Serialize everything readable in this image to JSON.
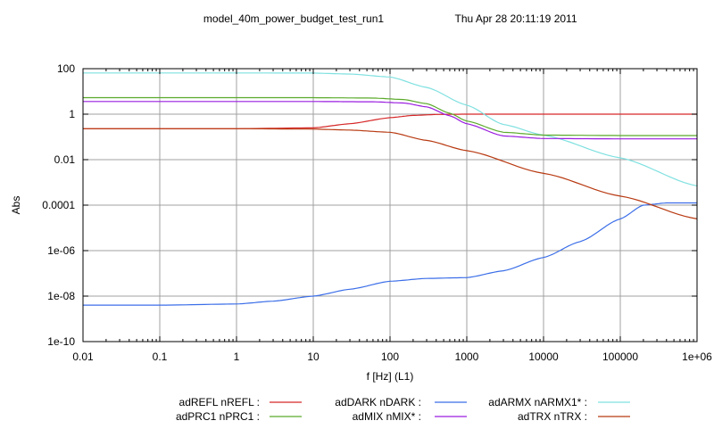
{
  "header": {
    "run_name": "model_40m_power_budget_test_run1",
    "timestamp": "Thu Apr 28 20:11:19 2011"
  },
  "chart_data": {
    "type": "line",
    "title": "model_40m_power_budget_test_run1",
    "subtitle": "Thu Apr 28 20:11:19 2011",
    "xlabel": "f [Hz] (L1)",
    "ylabel": "Abs",
    "xscale": "log",
    "yscale": "log",
    "xlim": [
      0.01,
      1000000
    ],
    "ylim": [
      1e-10,
      100
    ],
    "grid": true,
    "legend_position": "bottom",
    "x_ticks": [
      {
        "value": 0.01,
        "label": "0.01"
      },
      {
        "value": 0.1,
        "label": "0.1"
      },
      {
        "value": 1,
        "label": "1"
      },
      {
        "value": 10,
        "label": "10"
      },
      {
        "value": 100,
        "label": "100"
      },
      {
        "value": 1000,
        "label": "1000"
      },
      {
        "value": 10000,
        "label": "10000"
      },
      {
        "value": 100000,
        "label": "100000"
      },
      {
        "value": 1000000,
        "label": "1e+06"
      }
    ],
    "y_ticks": [
      {
        "value": 100,
        "label": "100"
      },
      {
        "value": 1,
        "label": "1"
      },
      {
        "value": 0.01,
        "label": "0.01"
      },
      {
        "value": 0.0001,
        "label": "0.0001"
      },
      {
        "value": 1e-06,
        "label": "1e-06"
      },
      {
        "value": 1e-08,
        "label": "1e-08"
      },
      {
        "value": 1e-10,
        "label": "1e-10"
      }
    ],
    "series": [
      {
        "name": "adREFL nREFL :",
        "color": "#d62728",
        "x": [
          0.01,
          1,
          10,
          30,
          100,
          200,
          400,
          1000,
          10000,
          100000,
          1000000
        ],
        "y": [
          0.23,
          0.23,
          0.25,
          0.38,
          0.7,
          0.88,
          0.97,
          1.0,
          1.0,
          1.0,
          1.0
        ]
      },
      {
        "name": "adDARK nDARK :",
        "color": "#3b6ee8",
        "x": [
          0.01,
          0.1,
          1,
          3,
          10,
          30,
          100,
          300,
          1000,
          3000,
          10000,
          30000,
          100000,
          200000,
          400000,
          1000000
        ],
        "y": [
          4e-09,
          4e-09,
          4.5e-09,
          6e-09,
          1e-08,
          2e-08,
          4.5e-08,
          6e-08,
          6.5e-08,
          1.3e-07,
          5e-07,
          2.5e-06,
          2.5e-05,
          0.0001,
          0.000125,
          0.000125
        ]
      },
      {
        "name": "adARMX nARMX1* :",
        "color": "#7fe0e0",
        "x": [
          0.01,
          1,
          10,
          30,
          100,
          300,
          1000,
          3000,
          10000,
          100000,
          1000000
        ],
        "y": [
          65,
          65,
          64,
          58,
          43,
          15,
          2.5,
          0.35,
          0.12,
          0.012,
          0.0007
        ]
      },
      {
        "name": "adPRC1 nPRC1 :",
        "color": "#5aaa2a",
        "x": [
          0.01,
          1,
          10,
          60,
          150,
          300,
          600,
          1000,
          3000,
          10000,
          100000,
          1000000
        ],
        "y": [
          5.3,
          5.3,
          5.3,
          5.1,
          4.4,
          2.9,
          1.1,
          0.5,
          0.16,
          0.12,
          0.115,
          0.115
        ]
      },
      {
        "name": "adMIX nMIX* :",
        "color": "#9a1de0",
        "x": [
          0.01,
          1,
          10,
          60,
          150,
          300,
          600,
          1000,
          3000,
          10000,
          100000,
          1000000
        ],
        "y": [
          3.6,
          3.6,
          3.6,
          3.5,
          3.1,
          2.1,
          0.85,
          0.38,
          0.11,
          0.085,
          0.082,
          0.082
        ]
      },
      {
        "name": "adTRX nTRX :",
        "color": "#b83a12",
        "x": [
          0.01,
          1,
          10,
          30,
          100,
          300,
          1000,
          10000,
          100000,
          1000000
        ],
        "y": [
          0.23,
          0.23,
          0.22,
          0.2,
          0.16,
          0.07,
          0.025,
          0.0025,
          0.00025,
          2.5e-05
        ]
      }
    ]
  }
}
